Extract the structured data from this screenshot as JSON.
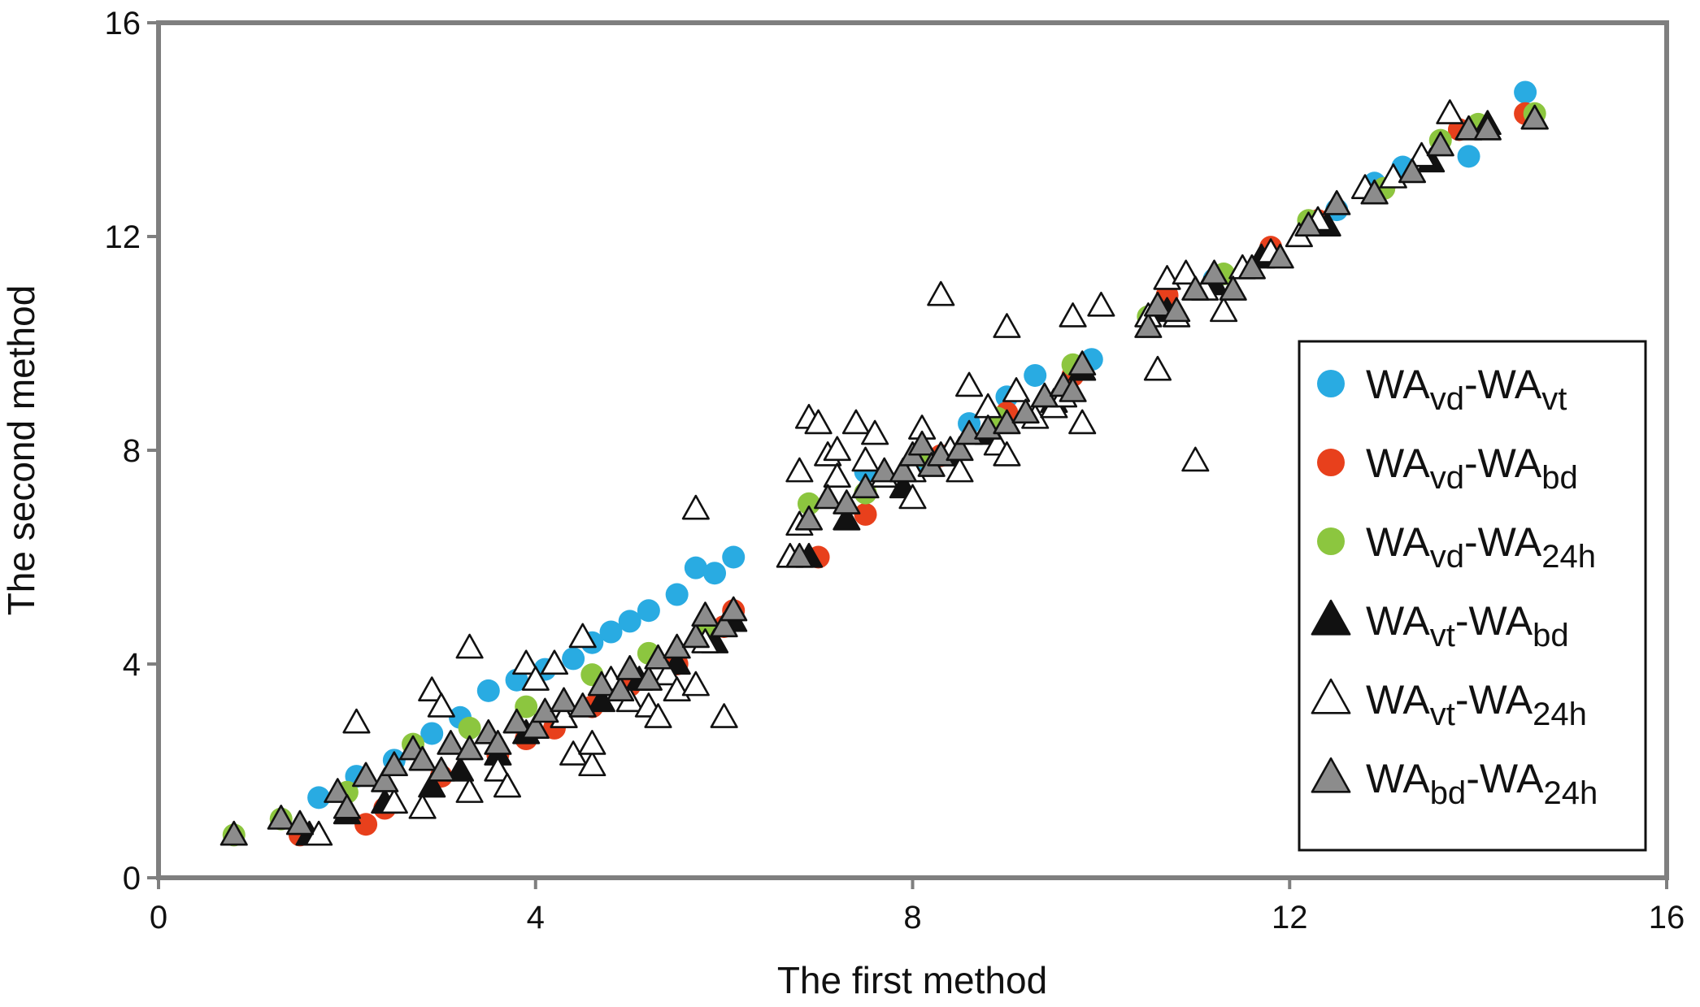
{
  "chart_data": {
    "type": "scatter",
    "title": "",
    "xlabel": "The first method",
    "ylabel": "The second method",
    "xlim": [
      0,
      16
    ],
    "ylim": [
      0,
      16
    ],
    "xticks": [
      "0",
      "4",
      "8",
      "12",
      "16"
    ],
    "yticks": [
      "0",
      "4",
      "8",
      "12",
      "16"
    ],
    "grid": false,
    "legend_position": "right",
    "series": [
      {
        "name": "WAvd-WAvt",
        "legend_parts": [
          [
            "WA",
            ""
          ],
          [
            "vd",
            "sub"
          ],
          [
            "-WA",
            ""
          ],
          [
            "vt",
            "sub"
          ]
        ],
        "marker": "circle",
        "color": "#29abe2",
        "points": [
          [
            1.7,
            1.5
          ],
          [
            2.1,
            1.9
          ],
          [
            2.5,
            2.2
          ],
          [
            2.9,
            2.7
          ],
          [
            3.2,
            3.0
          ],
          [
            3.5,
            3.5
          ],
          [
            3.8,
            3.7
          ],
          [
            4.1,
            3.9
          ],
          [
            4.4,
            4.1
          ],
          [
            4.6,
            4.4
          ],
          [
            4.8,
            4.6
          ],
          [
            5.0,
            4.8
          ],
          [
            5.2,
            5.0
          ],
          [
            5.5,
            5.3
          ],
          [
            5.7,
            5.8
          ],
          [
            5.9,
            5.7
          ],
          [
            6.1,
            6.0
          ],
          [
            7.5,
            7.6
          ],
          [
            8.1,
            7.8
          ],
          [
            8.6,
            8.5
          ],
          [
            9.0,
            9.0
          ],
          [
            9.3,
            9.4
          ],
          [
            9.9,
            9.7
          ],
          [
            11.2,
            11.2
          ],
          [
            12.5,
            12.5
          ],
          [
            12.9,
            13.0
          ],
          [
            13.2,
            13.3
          ],
          [
            13.9,
            13.5
          ],
          [
            14.5,
            14.7
          ]
        ]
      },
      {
        "name": "WAvd-WAbd",
        "legend_parts": [
          [
            "WA",
            ""
          ],
          [
            "vd",
            "sub"
          ],
          [
            "-WA",
            ""
          ],
          [
            "bd",
            "sub"
          ]
        ],
        "marker": "circle",
        "color": "#e8401c",
        "points": [
          [
            1.5,
            0.8
          ],
          [
            2.2,
            1.0
          ],
          [
            2.4,
            1.3
          ],
          [
            3.0,
            1.9
          ],
          [
            3.6,
            2.3
          ],
          [
            3.9,
            2.6
          ],
          [
            4.2,
            2.8
          ],
          [
            4.6,
            3.2
          ],
          [
            5.0,
            3.6
          ],
          [
            5.5,
            4.0
          ],
          [
            6.0,
            4.7
          ],
          [
            6.1,
            5.0
          ],
          [
            7.0,
            6.0
          ],
          [
            7.5,
            6.8
          ],
          [
            8.3,
            7.9
          ],
          [
            9.0,
            8.7
          ],
          [
            9.7,
            9.4
          ],
          [
            10.7,
            10.9
          ],
          [
            11.8,
            11.8
          ],
          [
            12.3,
            12.3
          ],
          [
            13.0,
            12.9
          ],
          [
            13.8,
            14.0
          ],
          [
            14.5,
            14.3
          ]
        ]
      },
      {
        "name": "WAvd-WA24h",
        "legend_parts": [
          [
            "WA",
            ""
          ],
          [
            "vd",
            "sub"
          ],
          [
            "-WA",
            ""
          ],
          [
            "24h",
            "sub"
          ]
        ],
        "marker": "circle",
        "color": "#8cc63f",
        "points": [
          [
            0.8,
            0.8
          ],
          [
            1.3,
            1.1
          ],
          [
            2.0,
            1.6
          ],
          [
            2.7,
            2.5
          ],
          [
            3.3,
            2.8
          ],
          [
            3.9,
            3.2
          ],
          [
            4.6,
            3.8
          ],
          [
            5.2,
            4.2
          ],
          [
            5.8,
            4.7
          ],
          [
            6.9,
            7.0
          ],
          [
            7.5,
            7.2
          ],
          [
            8.1,
            7.9
          ],
          [
            8.9,
            8.6
          ],
          [
            9.7,
            9.6
          ],
          [
            10.5,
            10.5
          ],
          [
            11.3,
            11.3
          ],
          [
            12.2,
            12.3
          ],
          [
            13.0,
            12.9
          ],
          [
            13.6,
            13.8
          ],
          [
            14.0,
            14.1
          ],
          [
            14.6,
            14.3
          ]
        ]
      },
      {
        "name": "WAvt-WAbd",
        "legend_parts": [
          [
            "WA",
            ""
          ],
          [
            "vt",
            "sub"
          ],
          [
            "-WA",
            ""
          ],
          [
            "bd",
            "sub"
          ]
        ],
        "marker": "triangle",
        "color": "#111111",
        "points": [
          [
            1.6,
            0.8
          ],
          [
            2.0,
            1.2
          ],
          [
            2.4,
            1.4
          ],
          [
            2.9,
            1.7
          ],
          [
            3.2,
            2.0
          ],
          [
            3.6,
            2.3
          ],
          [
            3.9,
            2.7
          ],
          [
            4.3,
            3.0
          ],
          [
            4.7,
            3.3
          ],
          [
            5.1,
            3.7
          ],
          [
            5.5,
            4.0
          ],
          [
            5.9,
            4.4
          ],
          [
            6.1,
            4.8
          ],
          [
            6.9,
            6.0
          ],
          [
            7.3,
            6.7
          ],
          [
            7.9,
            7.3
          ],
          [
            8.4,
            7.9
          ],
          [
            8.8,
            8.3
          ],
          [
            9.5,
            8.9
          ],
          [
            9.8,
            9.5
          ],
          [
            10.7,
            10.6
          ],
          [
            11.2,
            11.1
          ],
          [
            11.7,
            11.6
          ],
          [
            12.4,
            12.2
          ],
          [
            12.9,
            12.8
          ],
          [
            13.5,
            13.4
          ],
          [
            14.1,
            14.1
          ],
          [
            14.6,
            14.2
          ]
        ]
      },
      {
        "name": "WAvt-WA24h",
        "legend_parts": [
          [
            "WA",
            ""
          ],
          [
            "vt",
            "sub"
          ],
          [
            "-WA",
            ""
          ],
          [
            "24h",
            "sub"
          ]
        ],
        "marker": "triangle",
        "color": "#ffffff",
        "points": [
          [
            1.7,
            0.8
          ],
          [
            2.1,
            2.9
          ],
          [
            2.5,
            1.4
          ],
          [
            2.8,
            1.3
          ],
          [
            2.9,
            3.5
          ],
          [
            3.0,
            3.2
          ],
          [
            3.3,
            4.3
          ],
          [
            3.3,
            1.6
          ],
          [
            3.6,
            2.0
          ],
          [
            3.7,
            1.7
          ],
          [
            3.9,
            4.0
          ],
          [
            4.0,
            3.7
          ],
          [
            4.2,
            4.0
          ],
          [
            4.3,
            3.0
          ],
          [
            4.4,
            2.3
          ],
          [
            4.5,
            4.5
          ],
          [
            4.6,
            2.1
          ],
          [
            4.6,
            2.5
          ],
          [
            4.8,
            3.7
          ],
          [
            5.0,
            3.3
          ],
          [
            5.2,
            3.2
          ],
          [
            5.3,
            3.0
          ],
          [
            5.4,
            3.8
          ],
          [
            5.5,
            3.5
          ],
          [
            5.7,
            6.9
          ],
          [
            5.7,
            3.6
          ],
          [
            5.8,
            4.4
          ],
          [
            6.0,
            3.0
          ],
          [
            6.7,
            6.0
          ],
          [
            6.8,
            7.6
          ],
          [
            6.8,
            6.6
          ],
          [
            6.9,
            8.6
          ],
          [
            7.0,
            8.5
          ],
          [
            7.1,
            7.9
          ],
          [
            7.2,
            8.0
          ],
          [
            7.2,
            7.5
          ],
          [
            7.4,
            8.5
          ],
          [
            7.5,
            7.8
          ],
          [
            7.6,
            8.3
          ],
          [
            7.7,
            7.5
          ],
          [
            8.0,
            7.1
          ],
          [
            8.0,
            7.6
          ],
          [
            8.1,
            8.4
          ],
          [
            8.3,
            10.9
          ],
          [
            8.4,
            8.0
          ],
          [
            8.5,
            7.6
          ],
          [
            8.6,
            9.2
          ],
          [
            8.8,
            8.8
          ],
          [
            8.9,
            8.1
          ],
          [
            9.0,
            10.3
          ],
          [
            9.0,
            7.9
          ],
          [
            9.1,
            9.1
          ],
          [
            9.3,
            8.6
          ],
          [
            9.5,
            8.8
          ],
          [
            9.6,
            9.0
          ],
          [
            9.7,
            10.5
          ],
          [
            9.8,
            8.5
          ],
          [
            10.0,
            10.7
          ],
          [
            10.5,
            10.5
          ],
          [
            10.6,
            9.5
          ],
          [
            10.7,
            11.2
          ],
          [
            10.8,
            10.5
          ],
          [
            10.9,
            11.3
          ],
          [
            11.0,
            7.8
          ],
          [
            11.1,
            11.0
          ],
          [
            11.3,
            10.6
          ],
          [
            11.5,
            11.4
          ],
          [
            11.8,
            11.7
          ],
          [
            12.1,
            12.0
          ],
          [
            12.3,
            12.3
          ],
          [
            12.5,
            12.6
          ],
          [
            12.8,
            12.9
          ],
          [
            13.1,
            13.1
          ],
          [
            13.4,
            13.5
          ],
          [
            13.7,
            14.3
          ],
          [
            13.9,
            14.0
          ],
          [
            14.1,
            14.0
          ],
          [
            14.6,
            14.2
          ]
        ]
      },
      {
        "name": "WAbd-WA24h",
        "legend_parts": [
          [
            "WA",
            ""
          ],
          [
            "bd",
            "sub"
          ],
          [
            "-WA",
            ""
          ],
          [
            "24h",
            "sub"
          ]
        ],
        "marker": "triangle",
        "color": "#8c8c8c",
        "points": [
          [
            0.8,
            0.8
          ],
          [
            1.3,
            1.1
          ],
          [
            1.5,
            1.0
          ],
          [
            1.9,
            1.6
          ],
          [
            2.0,
            1.3
          ],
          [
            2.2,
            1.9
          ],
          [
            2.4,
            1.8
          ],
          [
            2.5,
            2.1
          ],
          [
            2.7,
            2.4
          ],
          [
            2.8,
            2.2
          ],
          [
            3.0,
            2.0
          ],
          [
            3.1,
            2.5
          ],
          [
            3.3,
            2.4
          ],
          [
            3.5,
            2.7
          ],
          [
            3.6,
            2.5
          ],
          [
            3.8,
            2.9
          ],
          [
            4.0,
            2.8
          ],
          [
            4.1,
            3.1
          ],
          [
            4.3,
            3.3
          ],
          [
            4.5,
            3.2
          ],
          [
            4.7,
            3.6
          ],
          [
            4.9,
            3.5
          ],
          [
            5.0,
            3.9
          ],
          [
            5.2,
            3.7
          ],
          [
            5.3,
            4.1
          ],
          [
            5.5,
            4.3
          ],
          [
            5.7,
            4.5
          ],
          [
            5.8,
            4.9
          ],
          [
            6.0,
            4.7
          ],
          [
            6.1,
            5.0
          ],
          [
            6.8,
            6.0
          ],
          [
            6.9,
            6.7
          ],
          [
            7.1,
            7.1
          ],
          [
            7.3,
            7.0
          ],
          [
            7.5,
            7.3
          ],
          [
            7.7,
            7.6
          ],
          [
            7.9,
            7.6
          ],
          [
            8.0,
            7.9
          ],
          [
            8.1,
            8.1
          ],
          [
            8.2,
            7.7
          ],
          [
            8.3,
            7.9
          ],
          [
            8.5,
            8.0
          ],
          [
            8.6,
            8.3
          ],
          [
            8.8,
            8.4
          ],
          [
            9.0,
            8.5
          ],
          [
            9.2,
            8.7
          ],
          [
            9.4,
            9.0
          ],
          [
            9.6,
            9.2
          ],
          [
            9.7,
            9.1
          ],
          [
            9.8,
            9.6
          ],
          [
            10.5,
            10.3
          ],
          [
            10.6,
            10.7
          ],
          [
            10.8,
            10.6
          ],
          [
            11.0,
            11.0
          ],
          [
            11.2,
            11.3
          ],
          [
            11.4,
            11.0
          ],
          [
            11.6,
            11.4
          ],
          [
            11.9,
            11.6
          ],
          [
            12.2,
            12.2
          ],
          [
            12.5,
            12.6
          ],
          [
            12.9,
            12.8
          ],
          [
            13.3,
            13.2
          ],
          [
            13.6,
            13.7
          ],
          [
            13.9,
            14.0
          ],
          [
            14.1,
            14.0
          ],
          [
            14.6,
            14.2
          ]
        ]
      }
    ]
  }
}
